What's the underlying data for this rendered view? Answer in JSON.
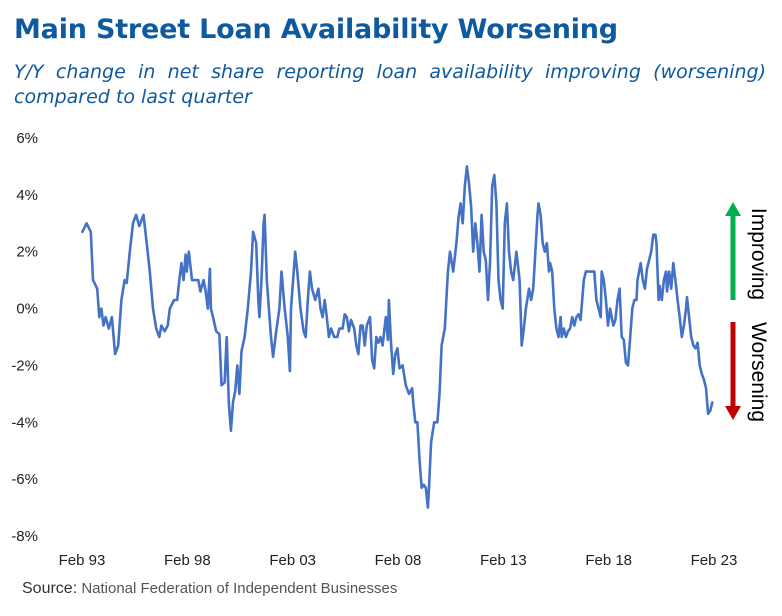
{
  "header": {
    "title": "Main Street Loan Availability Worsening",
    "subtitle": "Y/Y change in net share reporting loan availability improving (worsening) compared to last quarter"
  },
  "source": {
    "label": "Source:",
    "text": "National Federation of Independent Businesses"
  },
  "chart_data": {
    "type": "line",
    "title": "Main Street Loan Availability Worsening",
    "subtitle": "Y/Y change in net share reporting loan availability improving (worsening) compared to last quarter",
    "xlim": [
      1993.08,
      2023.08
    ],
    "ylim": [
      -8,
      6
    ],
    "y_ticks": [
      -8,
      -6,
      -4,
      -2,
      0,
      2,
      4,
      6
    ],
    "y_tick_labels": [
      "-8%",
      "-6%",
      "-4%",
      "-2%",
      "0%",
      "2%",
      "4%",
      "6%"
    ],
    "x_tick_labels": [
      "Feb 93",
      "Feb 98",
      "Feb 03",
      "Feb 08",
      "Feb 13",
      "Feb 18",
      "Feb 23"
    ],
    "grid": false,
    "line_color": "#4472c4",
    "annotations": [
      {
        "text": "Improving",
        "arrow": "up",
        "color": "#00b050"
      },
      {
        "text": "Worsening",
        "arrow": "down",
        "color": "#c00000"
      }
    ],
    "series": [
      {
        "points": [
          [
            1993.1,
            2.7
          ],
          [
            1993.3,
            3.0
          ],
          [
            1993.5,
            2.7
          ],
          [
            1993.6,
            1.0
          ],
          [
            1993.8,
            0.7
          ],
          [
            1993.9,
            -0.3
          ],
          [
            1994.0,
            0.0
          ],
          [
            1994.1,
            -0.6
          ],
          [
            1994.2,
            -0.3
          ],
          [
            1994.35,
            -0.7
          ],
          [
            1994.5,
            -0.3
          ],
          [
            1994.65,
            -1.6
          ],
          [
            1994.8,
            -1.3
          ],
          [
            1994.95,
            0.3
          ],
          [
            1995.1,
            1.0
          ],
          [
            1995.2,
            0.9
          ],
          [
            1995.35,
            2.0
          ],
          [
            1995.5,
            3.0
          ],
          [
            1995.65,
            3.3
          ],
          [
            1995.8,
            2.9
          ],
          [
            1996.0,
            3.3
          ],
          [
            1996.15,
            2.3
          ],
          [
            1996.3,
            1.3
          ],
          [
            1996.45,
            0.0
          ],
          [
            1996.6,
            -0.7
          ],
          [
            1996.75,
            -1.0
          ],
          [
            1996.85,
            -0.6
          ],
          [
            1997.0,
            -0.8
          ],
          [
            1997.15,
            -0.6
          ],
          [
            1997.25,
            0.0
          ],
          [
            1997.45,
            0.3
          ],
          [
            1997.6,
            0.3
          ],
          [
            1997.7,
            1.0
          ],
          [
            1997.8,
            1.6
          ],
          [
            1997.9,
            1.0
          ],
          [
            1998.0,
            1.9
          ],
          [
            1998.05,
            1.3
          ],
          [
            1998.15,
            2.0
          ],
          [
            1998.3,
            1.0
          ],
          [
            1998.45,
            1.0
          ],
          [
            1998.6,
            1.0
          ],
          [
            1998.7,
            0.6
          ],
          [
            1998.85,
            1.0
          ],
          [
            1998.95,
            0.6
          ],
          [
            1999.05,
            0.0
          ],
          [
            1999.15,
            1.4
          ],
          [
            1999.2,
            0.0
          ],
          [
            1999.3,
            -0.3
          ],
          [
            1999.45,
            -0.8
          ],
          [
            1999.6,
            -0.9
          ],
          [
            1999.7,
            -2.7
          ],
          [
            1999.85,
            -2.6
          ],
          [
            1999.95,
            -1.0
          ],
          [
            2000.05,
            -3.3
          ],
          [
            2000.15,
            -4.3
          ],
          [
            2000.25,
            -3.3
          ],
          [
            2000.35,
            -2.9
          ],
          [
            2000.45,
            -2.0
          ],
          [
            2000.55,
            -3.0
          ],
          [
            2000.65,
            -1.5
          ],
          [
            2000.8,
            -1.0
          ],
          [
            2000.95,
            0.0
          ],
          [
            2001.1,
            1.3
          ],
          [
            2001.2,
            2.7
          ],
          [
            2001.35,
            2.3
          ],
          [
            2001.45,
            0.3
          ],
          [
            2001.5,
            -0.3
          ],
          [
            2001.6,
            1.0
          ],
          [
            2001.7,
            3.0
          ],
          [
            2001.75,
            3.3
          ],
          [
            2001.85,
            1.0
          ],
          [
            2001.95,
            0.0
          ],
          [
            2002.05,
            -1.0
          ],
          [
            2002.15,
            -1.7
          ],
          [
            2002.3,
            -0.8
          ],
          [
            2002.45,
            0.0
          ],
          [
            2002.55,
            1.3
          ],
          [
            2002.7,
            0.0
          ],
          [
            2002.85,
            -1.0
          ],
          [
            2002.95,
            -2.2
          ],
          [
            2003.0,
            0.0
          ],
          [
            2003.1,
            1.0
          ],
          [
            2003.2,
            2.0
          ],
          [
            2003.3,
            1.3
          ],
          [
            2003.45,
            0.0
          ],
          [
            2003.6,
            -0.8
          ],
          [
            2003.7,
            -1.0
          ],
          [
            2003.8,
            0.3
          ],
          [
            2003.9,
            1.3
          ],
          [
            2004.0,
            0.7
          ],
          [
            2004.15,
            0.3
          ],
          [
            2004.3,
            0.7
          ],
          [
            2004.4,
            0.0
          ],
          [
            2004.5,
            -0.3
          ],
          [
            2004.6,
            0.3
          ],
          [
            2004.7,
            -0.3
          ],
          [
            2004.8,
            -1.0
          ],
          [
            2004.9,
            -0.7
          ],
          [
            2005.05,
            -1.0
          ],
          [
            2005.2,
            -1.0
          ],
          [
            2005.3,
            -0.7
          ],
          [
            2005.45,
            -0.7
          ],
          [
            2005.55,
            -0.2
          ],
          [
            2005.65,
            -0.3
          ],
          [
            2005.75,
            -0.8
          ],
          [
            2005.85,
            -0.4
          ],
          [
            2006.0,
            -0.7
          ],
          [
            2006.1,
            -1.3
          ],
          [
            2006.2,
            -1.6
          ],
          [
            2006.3,
            -0.6
          ],
          [
            2006.4,
            -0.6
          ],
          [
            2006.5,
            -1.3
          ],
          [
            2006.6,
            -0.6
          ],
          [
            2006.75,
            -0.3
          ],
          [
            2006.85,
            -1.8
          ],
          [
            2006.95,
            -2.1
          ],
          [
            2007.05,
            -1.0
          ],
          [
            2007.15,
            -1.2
          ],
          [
            2007.25,
            -1.0
          ],
          [
            2007.35,
            -1.3
          ],
          [
            2007.5,
            -0.3
          ],
          [
            2007.6,
            -1.1
          ],
          [
            2007.65,
            0.3
          ],
          [
            2007.75,
            -1.2
          ],
          [
            2007.85,
            -2.3
          ],
          [
            2007.95,
            -1.6
          ],
          [
            2008.05,
            -1.4
          ],
          [
            2008.15,
            -2.1
          ],
          [
            2008.3,
            -2.0
          ],
          [
            2008.45,
            -2.7
          ],
          [
            2008.6,
            -3.0
          ],
          [
            2008.75,
            -2.8
          ],
          [
            2008.8,
            -3.3
          ],
          [
            2008.9,
            -4.0
          ],
          [
            2009.0,
            -4.0
          ],
          [
            2009.1,
            -5.3
          ],
          [
            2009.2,
            -6.3
          ],
          [
            2009.3,
            -6.2
          ],
          [
            2009.4,
            -6.3
          ],
          [
            2009.5,
            -7.0
          ],
          [
            2009.55,
            -6.3
          ],
          [
            2009.65,
            -4.7
          ],
          [
            2009.8,
            -4.0
          ],
          [
            2009.95,
            -4.0
          ],
          [
            2010.05,
            -3.0
          ],
          [
            2010.15,
            -1.3
          ],
          [
            2010.3,
            -0.7
          ],
          [
            2010.45,
            1.3
          ],
          [
            2010.55,
            2.0
          ],
          [
            2010.7,
            1.3
          ],
          [
            2010.85,
            2.3
          ],
          [
            2010.95,
            3.2
          ],
          [
            2011.05,
            3.7
          ],
          [
            2011.15,
            3.0
          ],
          [
            2011.25,
            4.3
          ],
          [
            2011.35,
            5.0
          ],
          [
            2011.45,
            4.4
          ],
          [
            2011.55,
            3.6
          ],
          [
            2011.65,
            2.0
          ],
          [
            2011.75,
            3.0
          ],
          [
            2011.85,
            2.3
          ],
          [
            2011.95,
            1.3
          ],
          [
            2012.05,
            3.3
          ],
          [
            2012.15,
            2.0
          ],
          [
            2012.25,
            1.7
          ],
          [
            2012.35,
            0.3
          ],
          [
            2012.45,
            1.7
          ],
          [
            2012.55,
            4.3
          ],
          [
            2012.65,
            4.7
          ],
          [
            2012.75,
            3.7
          ],
          [
            2012.85,
            1.0
          ],
          [
            2012.95,
            0.3
          ],
          [
            2013.05,
            0.0
          ],
          [
            2013.15,
            3.0
          ],
          [
            2013.25,
            3.7
          ],
          [
            2013.35,
            2.0
          ],
          [
            2013.45,
            1.3
          ],
          [
            2013.55,
            1.0
          ],
          [
            2013.7,
            2.0
          ],
          [
            2013.85,
            1.0
          ],
          [
            2013.95,
            -1.3
          ],
          [
            2014.05,
            -0.7
          ],
          [
            2014.15,
            0.0
          ],
          [
            2014.3,
            0.7
          ],
          [
            2014.4,
            0.3
          ],
          [
            2014.5,
            0.7
          ],
          [
            2014.6,
            2.0
          ],
          [
            2014.7,
            3.3
          ],
          [
            2014.75,
            3.7
          ],
          [
            2014.85,
            3.3
          ],
          [
            2014.95,
            2.3
          ],
          [
            2015.05,
            2.0
          ],
          [
            2015.15,
            2.3
          ],
          [
            2015.25,
            1.3
          ],
          [
            2015.3,
            1.6
          ],
          [
            2015.4,
            1.3
          ],
          [
            2015.5,
            0.0
          ],
          [
            2015.6,
            -0.7
          ],
          [
            2015.7,
            -1.0
          ],
          [
            2015.8,
            -0.3
          ],
          [
            2015.85,
            -1.0
          ],
          [
            2015.95,
            -0.7
          ],
          [
            2016.05,
            -1.0
          ],
          [
            2016.15,
            -0.8
          ],
          [
            2016.25,
            -0.7
          ],
          [
            2016.35,
            -0.3
          ],
          [
            2016.45,
            -0.6
          ],
          [
            2016.55,
            -0.3
          ],
          [
            2016.65,
            -0.2
          ],
          [
            2016.75,
            -0.4
          ],
          [
            2016.9,
            1.0
          ],
          [
            2017.0,
            1.3
          ],
          [
            2017.15,
            1.3
          ],
          [
            2017.3,
            1.3
          ],
          [
            2017.4,
            1.3
          ],
          [
            2017.5,
            0.3
          ],
          [
            2017.6,
            0.0
          ],
          [
            2017.7,
            -0.3
          ],
          [
            2017.75,
            1.3
          ],
          [
            2017.85,
            1.0
          ],
          [
            2017.95,
            0.3
          ],
          [
            2018.05,
            -0.6
          ],
          [
            2018.15,
            0.0
          ],
          [
            2018.3,
            -0.6
          ],
          [
            2018.4,
            -0.4
          ],
          [
            2018.5,
            0.3
          ],
          [
            2018.6,
            0.7
          ],
          [
            2018.7,
            -1.0
          ],
          [
            2018.8,
            -1.1
          ],
          [
            2018.9,
            -1.9
          ],
          [
            2019.0,
            -2.0
          ],
          [
            2019.1,
            -1.0
          ],
          [
            2019.2,
            0.0
          ],
          [
            2019.3,
            0.3
          ],
          [
            2019.4,
            0.3
          ],
          [
            2019.45,
            1.0
          ],
          [
            2019.55,
            1.4
          ],
          [
            2019.6,
            1.6
          ],
          [
            2019.7,
            1.0
          ],
          [
            2019.8,
            0.7
          ],
          [
            2019.9,
            1.4
          ],
          [
            2020.0,
            1.7
          ],
          [
            2020.1,
            2.0
          ],
          [
            2020.2,
            2.6
          ],
          [
            2020.3,
            2.6
          ],
          [
            2020.35,
            2.3
          ],
          [
            2020.45,
            0.3
          ],
          [
            2020.5,
            0.8
          ],
          [
            2020.6,
            0.3
          ],
          [
            2020.7,
            1.0
          ],
          [
            2020.8,
            1.3
          ],
          [
            2020.85,
            0.6
          ],
          [
            2020.95,
            1.3
          ],
          [
            2021.05,
            0.7
          ],
          [
            2021.15,
            1.6
          ],
          [
            2021.25,
            1.0
          ],
          [
            2021.35,
            0.3
          ],
          [
            2021.45,
            -0.3
          ],
          [
            2021.55,
            -1.0
          ],
          [
            2021.65,
            -0.6
          ],
          [
            2021.75,
            0.0
          ],
          [
            2021.8,
            0.4
          ],
          [
            2021.9,
            -0.3
          ],
          [
            2022.0,
            -1.0
          ],
          [
            2022.1,
            -1.3
          ],
          [
            2022.2,
            -1.4
          ],
          [
            2022.3,
            -1.2
          ],
          [
            2022.4,
            -2.0
          ],
          [
            2022.5,
            -2.3
          ],
          [
            2022.6,
            -2.5
          ],
          [
            2022.7,
            -2.8
          ],
          [
            2022.8,
            -3.7
          ],
          [
            2022.9,
            -3.6
          ],
          [
            2023.0,
            -3.3
          ]
        ]
      }
    ]
  }
}
